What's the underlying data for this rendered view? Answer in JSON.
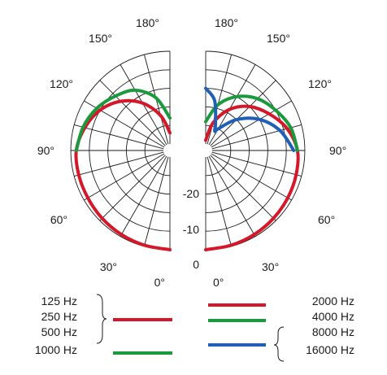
{
  "chart_data": {
    "type": "polar",
    "angle_labels": {
      "left": [
        "180°",
        "150°",
        "120°",
        "90°",
        "60°",
        "30°",
        "0°"
      ],
      "right": [
        "180°",
        "150°",
        "120°",
        "90°",
        "60°",
        "30°",
        "0°"
      ]
    },
    "db_labels": [
      "-20",
      "-10",
      "0"
    ],
    "db_range": [
      -25,
      0
    ],
    "rings_db": [
      0,
      -5,
      -10,
      -15,
      -20
    ],
    "spoke_step_deg": 15,
    "legend": {
      "left": [
        {
          "labels": [
            "125 Hz",
            "250 Hz",
            "500 Hz"
          ],
          "bracket": true,
          "color": "#d4182a"
        },
        {
          "labels": [
            "1000 Hz"
          ],
          "bracket": false,
          "color": "#1a9a3c"
        }
      ],
      "right": [
        {
          "labels": [
            "2000 Hz"
          ],
          "bracket": false,
          "color": "#d4182a"
        },
        {
          "labels": [
            "4000 Hz"
          ],
          "bracket": false,
          "color": "#1a9a3c"
        },
        {
          "labels": [
            "8000 Hz",
            "16000 Hz"
          ],
          "bracket": true,
          "color": "#1f5fb5"
        }
      ]
    },
    "series": [
      {
        "name": "125 Hz / 250 Hz / 500 Hz",
        "side": "left",
        "color": "#d4182a",
        "points": [
          [
            0,
            0
          ],
          [
            15,
            -0.3
          ],
          [
            30,
            -0.6
          ],
          [
            45,
            -0.9
          ],
          [
            60,
            -1.2
          ],
          [
            75,
            -1.3
          ],
          [
            90,
            -1.5
          ],
          [
            105,
            -3
          ],
          [
            120,
            -5
          ],
          [
            135,
            -8
          ],
          [
            150,
            -12
          ],
          [
            165,
            -17
          ],
          [
            180,
            -22
          ]
        ]
      },
      {
        "name": "1000 Hz",
        "side": "left",
        "color": "#1a9a3c",
        "points": [
          [
            90,
            -1.5
          ],
          [
            105,
            -2.5
          ],
          [
            120,
            -4
          ],
          [
            135,
            -6
          ],
          [
            150,
            -8
          ],
          [
            165,
            -12
          ],
          [
            180,
            -18
          ]
        ]
      },
      {
        "name": "2000 Hz",
        "side": "right",
        "color": "#d4182a",
        "points": [
          [
            0,
            0
          ],
          [
            15,
            -0.3
          ],
          [
            30,
            -0.6
          ],
          [
            45,
            -0.9
          ],
          [
            60,
            -1.2
          ],
          [
            75,
            -1.5
          ],
          [
            90,
            -2
          ],
          [
            105,
            -4
          ],
          [
            120,
            -7
          ],
          [
            135,
            -10
          ],
          [
            150,
            -14
          ],
          [
            165,
            -19
          ],
          [
            180,
            -24
          ]
        ]
      },
      {
        "name": "4000 Hz",
        "side": "right",
        "color": "#1a9a3c",
        "points": [
          [
            90,
            -2
          ],
          [
            105,
            -3
          ],
          [
            120,
            -5
          ],
          [
            135,
            -7
          ],
          [
            150,
            -10
          ],
          [
            165,
            -14
          ],
          [
            180,
            -19
          ]
        ]
      },
      {
        "name": "8000 Hz / 16000 Hz",
        "side": "right",
        "color": "#1f5fb5",
        "points": [
          [
            90,
            -3
          ],
          [
            105,
            -6
          ],
          [
            120,
            -10
          ],
          [
            135,
            -15
          ],
          [
            150,
            -20
          ],
          [
            155,
            -21
          ],
          [
            160,
            -19
          ],
          [
            170,
            -13
          ],
          [
            180,
            -10
          ]
        ]
      }
    ]
  }
}
